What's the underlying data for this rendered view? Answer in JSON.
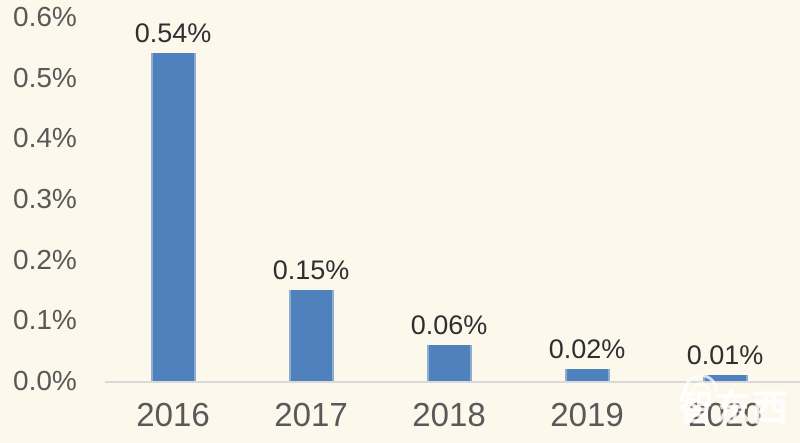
{
  "chart_data": {
    "type": "bar",
    "title": "",
    "xlabel": "",
    "ylabel": "",
    "categories": [
      "2016",
      "2017",
      "2018",
      "2019",
      "2020"
    ],
    "values": [
      0.54,
      0.15,
      0.06,
      0.02,
      0.01
    ],
    "data_labels": [
      "0.54%",
      "0.15%",
      "0.06%",
      "0.02%",
      "0.01%"
    ],
    "y_ticks": [
      {
        "label": "0.6%",
        "value": 0.6
      },
      {
        "label": "0.5%",
        "value": 0.5
      },
      {
        "label": "0.4%",
        "value": 0.4
      },
      {
        "label": "0.3%",
        "value": 0.3
      },
      {
        "label": "0.2%",
        "value": 0.2
      },
      {
        "label": "0.1%",
        "value": 0.1
      },
      {
        "label": "0.0%",
        "value": 0.0
      }
    ],
    "ylim": [
      0,
      0.6
    ],
    "grid": false,
    "legend": "none",
    "colors": {
      "background": "#fdf8ec",
      "bar": "#4f81bd",
      "bar_edge": "#8fadd3",
      "axis_line": "#d9d9d9",
      "data_label_text": "#2f2f2f",
      "tick_text": "#595959"
    }
  },
  "watermark": {
    "text": "智东西"
  }
}
